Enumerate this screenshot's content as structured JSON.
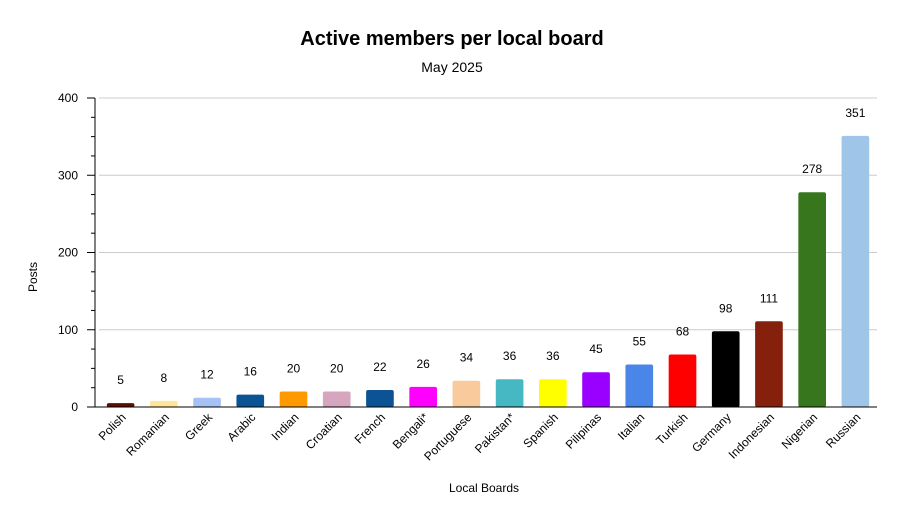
{
  "chart_data": {
    "type": "bar",
    "title": "Active members per local board",
    "subtitle": "May 2025",
    "xlabel": "Local Boards",
    "ylabel": "Posts",
    "ylim": [
      0,
      400
    ],
    "yticks": [
      0,
      100,
      200,
      300,
      400
    ],
    "grid": true,
    "legend": "none",
    "categories": [
      "Polish",
      "Romanian",
      "Greek",
      "Arabic",
      "Indian",
      "Croatian",
      "French",
      "Bengali*",
      "Portuguese",
      "Pakistan*",
      "Spanish",
      "Pilipinas",
      "Italian",
      "Turkish",
      "Germany",
      "Indonesian",
      "Nigerian",
      "Russian"
    ],
    "values": [
      5,
      8,
      12,
      16,
      20,
      20,
      22,
      26,
      34,
      36,
      36,
      45,
      55,
      68,
      98,
      111,
      278,
      351
    ],
    "colors": [
      "#5b0f00",
      "#ffe599",
      "#a4c2f4",
      "#0b5394",
      "#ff9900",
      "#d5a6bd",
      "#0b5394",
      "#ff00ff",
      "#f9cb9c",
      "#45b8c4",
      "#ffff00",
      "#9900ff",
      "#4a86e8",
      "#ff0000",
      "#000000",
      "#85200c",
      "#38761d",
      "#9fc5e8"
    ]
  }
}
